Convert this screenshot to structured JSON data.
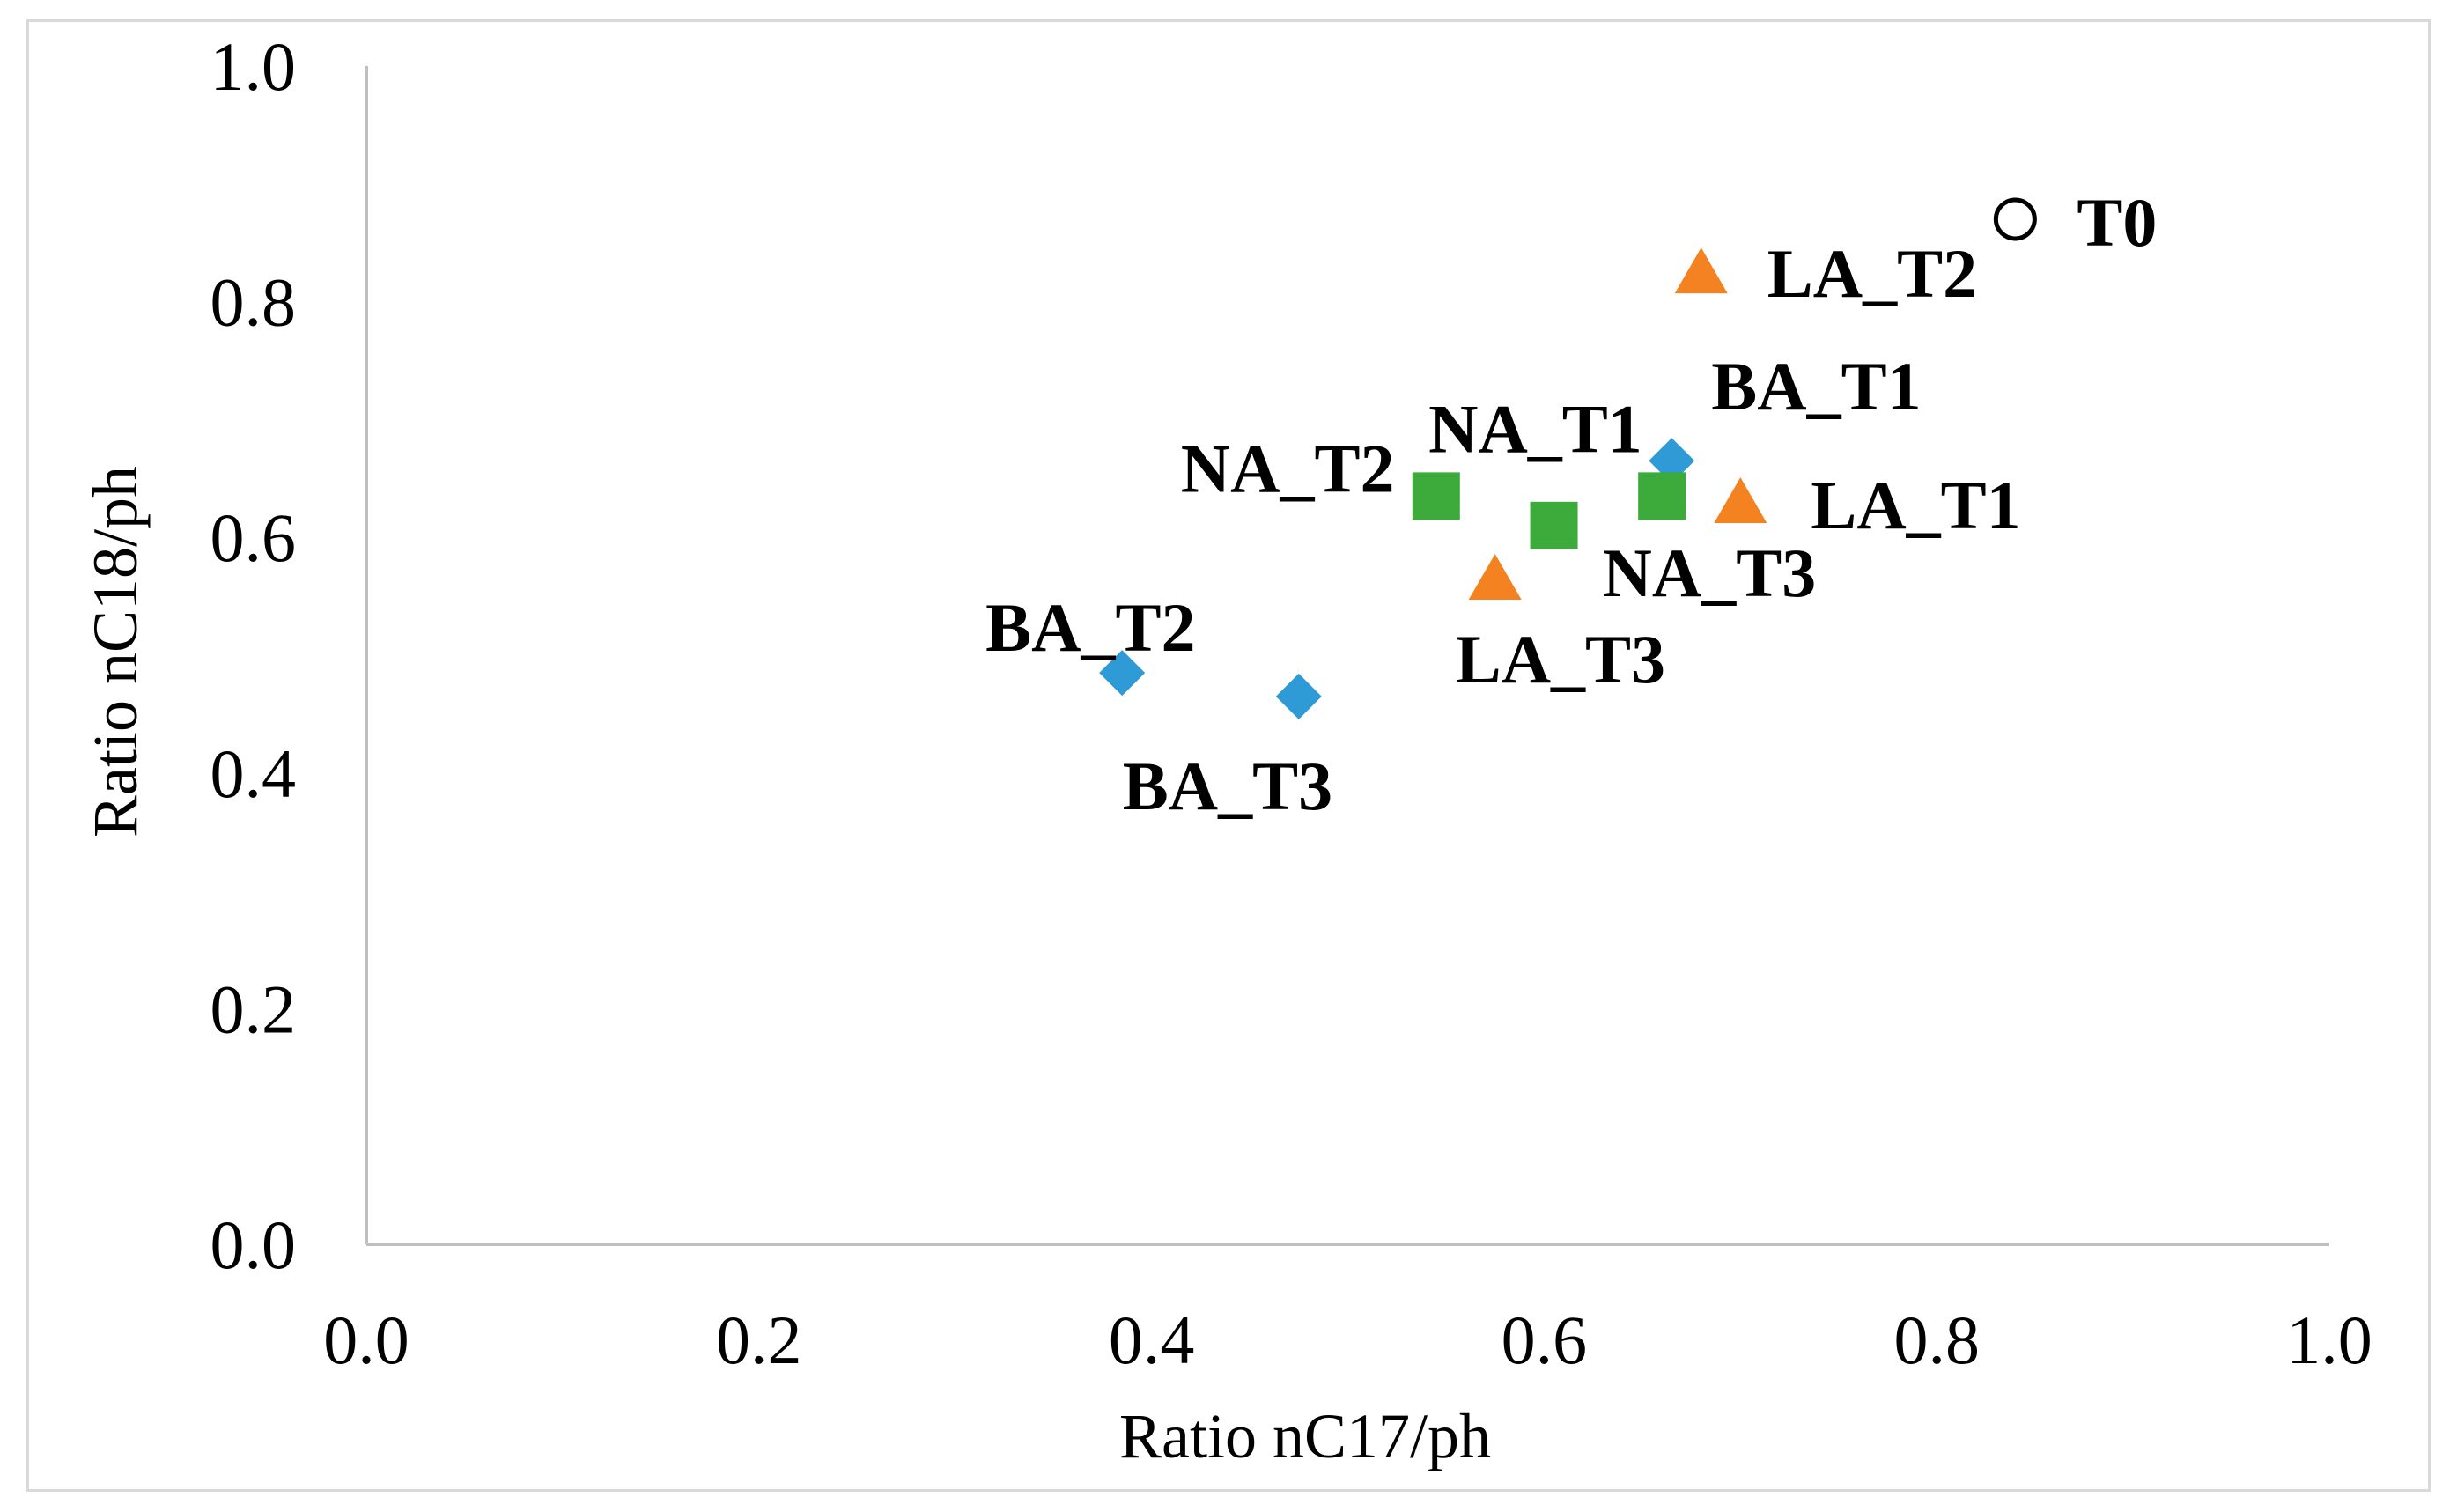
{
  "chart_data": {
    "type": "scatter",
    "title": "",
    "xlabel": "Ratio nC17/ph",
    "ylabel": "Ratio nC18/ph",
    "xlim": [
      0.0,
      1.0
    ],
    "ylim": [
      0.0,
      1.0
    ],
    "xticks": [
      "0.0",
      "0.2",
      "0.4",
      "0.6",
      "0.8",
      "1.0"
    ],
    "yticks": [
      "0.0",
      "0.2",
      "0.4",
      "0.6",
      "0.8",
      "1.0"
    ],
    "grid": false,
    "legend": "none",
    "series": [
      {
        "name": "T0",
        "marker": "circle-open",
        "color": "#000000",
        "points": [
          {
            "x": 0.84,
            "y": 0.87,
            "label": "T0"
          }
        ]
      },
      {
        "name": "BA",
        "marker": "diamond",
        "color": "#2E9BD6",
        "points": [
          {
            "x": 0.665,
            "y": 0.665,
            "label": "BA_T1"
          },
          {
            "x": 0.385,
            "y": 0.485,
            "label": "BA_T2"
          },
          {
            "x": 0.475,
            "y": 0.465,
            "label": "BA_T3"
          }
        ]
      },
      {
        "name": "LA",
        "marker": "triangle",
        "color": "#F58220",
        "points": [
          {
            "x": 0.7,
            "y": 0.63,
            "label": "LA_T1"
          },
          {
            "x": 0.68,
            "y": 0.825,
            "label": "LA_T2"
          },
          {
            "x": 0.575,
            "y": 0.565,
            "label": "LA_T3"
          }
        ]
      },
      {
        "name": "NA",
        "marker": "square",
        "color": "#3DAA3C",
        "points": [
          {
            "x": 0.66,
            "y": 0.635,
            "label": "NA_T1"
          },
          {
            "x": 0.545,
            "y": 0.635,
            "label": "NA_T2"
          },
          {
            "x": 0.605,
            "y": 0.61,
            "label": "NA_T3"
          }
        ]
      }
    ]
  }
}
